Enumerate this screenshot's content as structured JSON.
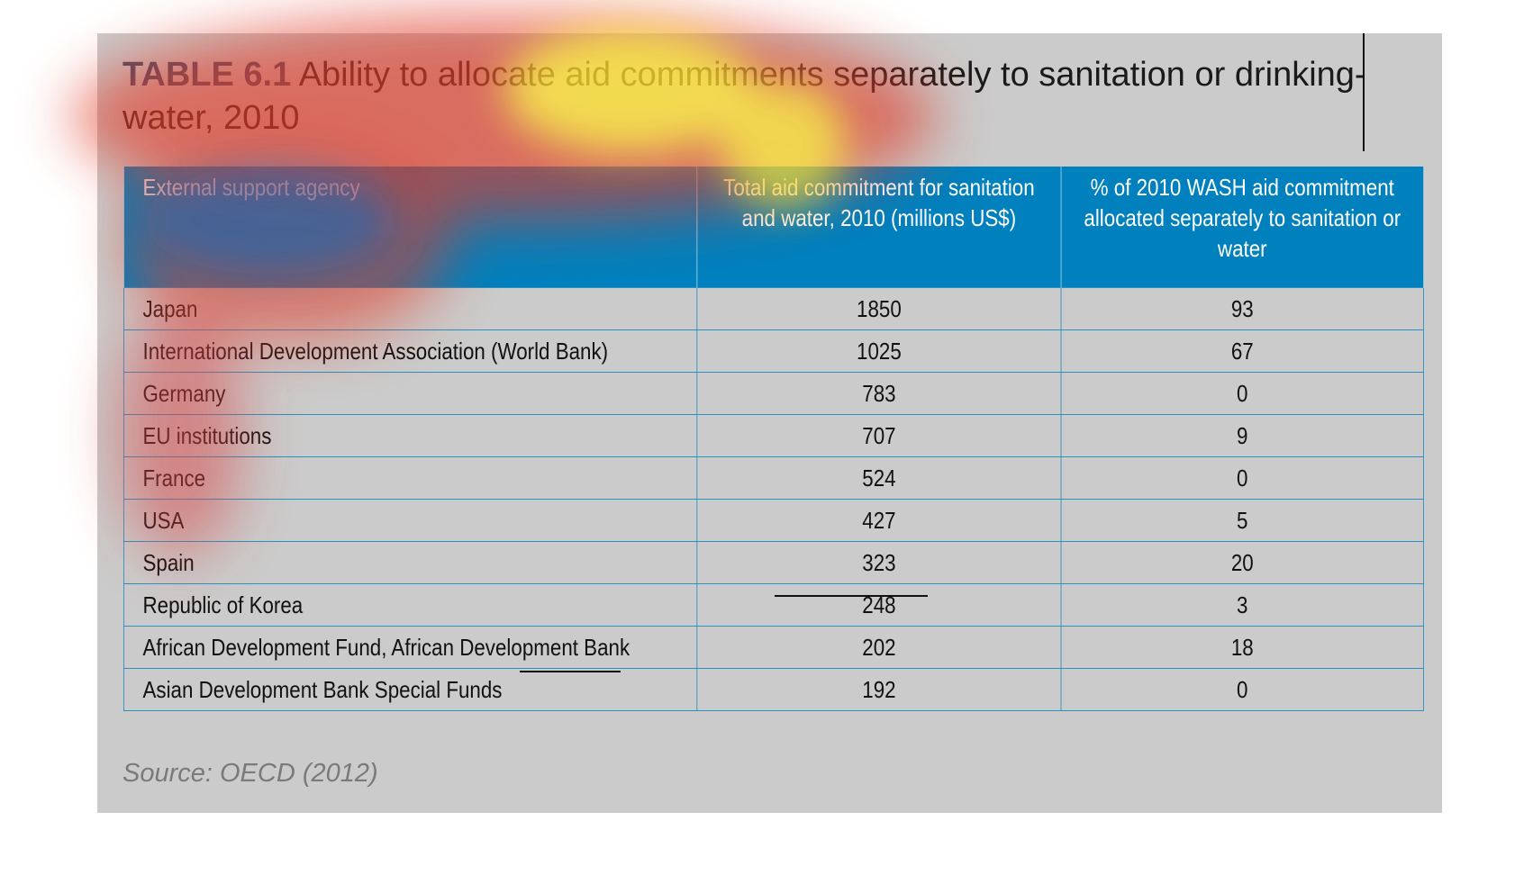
{
  "title": {
    "label": "TABLE 6.1",
    "text": "Ability to allocate aid commitments separately to sanitation or drinking-water, 2010"
  },
  "table": {
    "headers": [
      "External support agency",
      "Total aid commitment for sanitation and water, 2010 (millions US$)",
      "% of 2010 WASH aid commitment allocated separately to sanitation or water"
    ],
    "rows": [
      {
        "agency": "Japan",
        "total": "1850",
        "pct": "93"
      },
      {
        "agency": "International Development Association (World Bank)",
        "total": "1025",
        "pct": "67"
      },
      {
        "agency": "Germany",
        "total": "783",
        "pct": "0"
      },
      {
        "agency": "EU institutions",
        "total": "707",
        "pct": "9"
      },
      {
        "agency": "France",
        "total": "524",
        "pct": "0"
      },
      {
        "agency": "USA",
        "total": "427",
        "pct": "5"
      },
      {
        "agency": "Spain",
        "total": "323",
        "pct": "20"
      },
      {
        "agency": "Republic of Korea",
        "total": "248",
        "pct": "3"
      },
      {
        "agency": "African Development Fund, African Development Bank",
        "total": "202",
        "pct": "18"
      },
      {
        "agency": "Asian Development Bank Special Funds",
        "total": "192",
        "pct": "0"
      }
    ]
  },
  "source": "Source: OECD (2012)",
  "colors": {
    "header_bg": "#0080bd",
    "panel_bg": "#cbcbcb",
    "grid_line": "#2b8fc2",
    "title_label": "#3f4e6e",
    "source_text": "#7a7a7a"
  }
}
